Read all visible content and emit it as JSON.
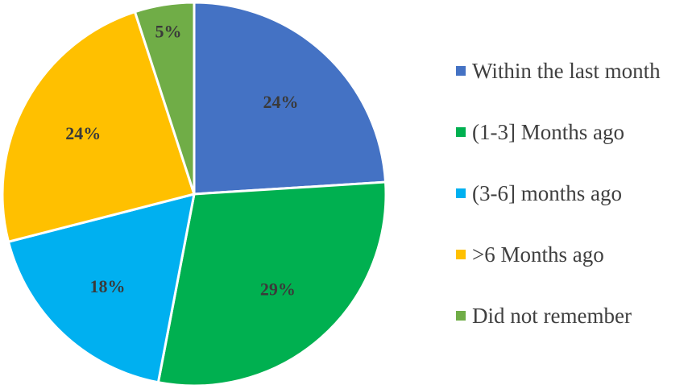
{
  "chart_data": {
    "type": "pie",
    "title": "",
    "categories": [
      "Within the last month",
      "(1-3] Months ago",
      "(3-6] months ago",
      ">6 Months ago",
      "Did not remember"
    ],
    "values": [
      24,
      29,
      18,
      24,
      5
    ],
    "labels": [
      "24%",
      "29%",
      "18%",
      "24%",
      "5%"
    ],
    "colors": [
      "#4472C4",
      "#00B050",
      "#00B0F0",
      "#FFC000",
      "#70AD47"
    ],
    "start_angle": "12 o'clock",
    "direction": "clockwise",
    "legend_position": "right"
  }
}
